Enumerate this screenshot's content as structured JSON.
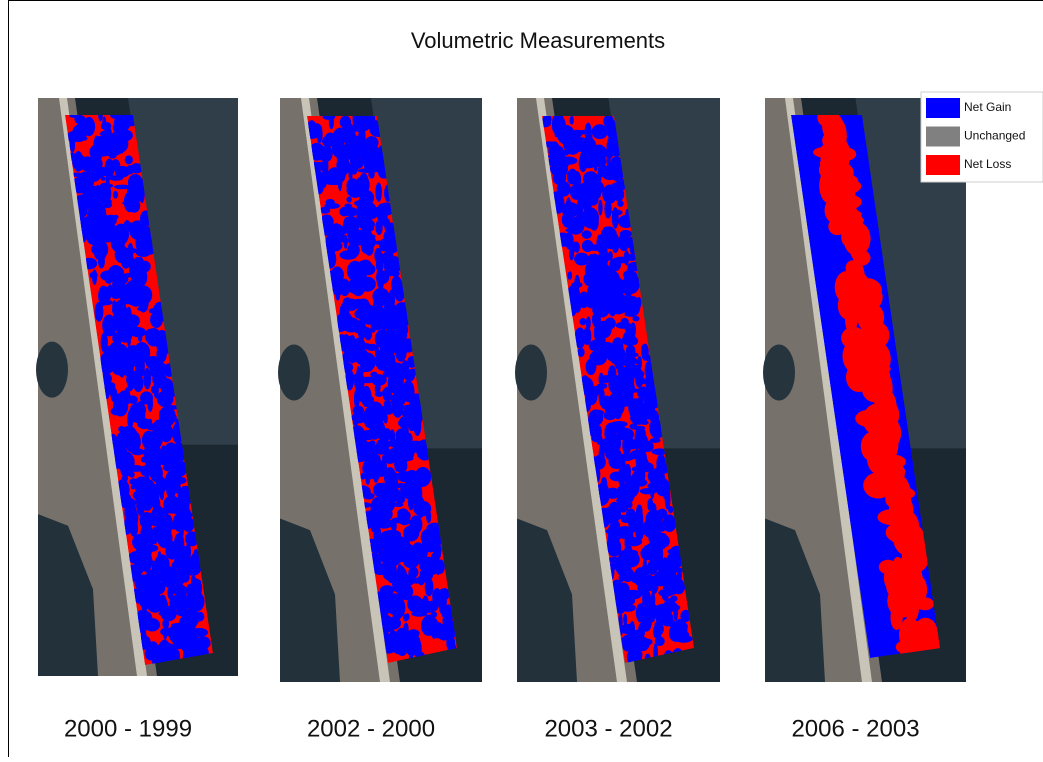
{
  "title": "Volumetric Measurements",
  "panels": [
    {
      "label": "2000 - 1999"
    },
    {
      "label": "2002 - 2000"
    },
    {
      "label": "2003 - 2002"
    },
    {
      "label": "2006 - 2003"
    }
  ],
  "legend": [
    {
      "label": "Net Gain",
      "color": "#0000ff"
    },
    {
      "label": "Unchanged",
      "color": "#808080"
    },
    {
      "label": "Net Loss",
      "color": "#ff0000"
    }
  ]
}
